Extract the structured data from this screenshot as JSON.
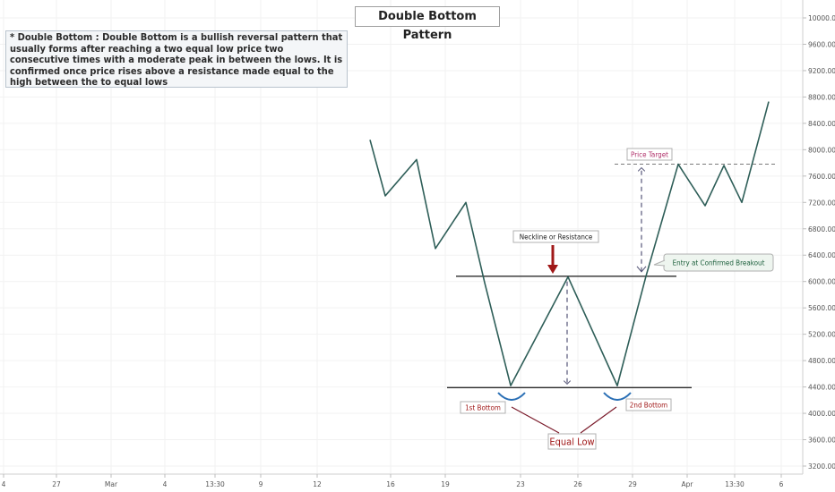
{
  "chart_data": {
    "type": "line",
    "title": "Double Bottom Pattern",
    "description": "* Double Bottom : Double Bottom is a bullish reversal pattern that usually forms after reaching a two equal low price two consecutive times with a moderate peak in between the lows. It is confirmed once price rises above a resistance made equal to the high between the to equal lows",
    "x_tick_labels": [
      "4",
      "27",
      "Mar",
      "4",
      "13:30",
      "9",
      "12",
      "16",
      "19",
      "23",
      "26",
      "29",
      "Apr",
      "13:30",
      "6"
    ],
    "y_tick_labels": [
      "10000.00",
      "9600.00",
      "9200.00",
      "8800.00",
      "8400.00",
      "8000.00",
      "7600.00",
      "7200.00",
      "6800.00",
      "6400.00",
      "6000.00",
      "5600.00",
      "5200.00",
      "4800.00",
      "4400.00",
      "4000.00",
      "3600.00",
      "3200.00"
    ],
    "ylim": [
      3200,
      10000
    ],
    "series": [
      {
        "color": "#2e5e58",
        "values": [
          8150,
          7300,
          7850,
          6500,
          7200,
          5980,
          4420,
          6070,
          4420,
          6080,
          7780,
          7150,
          7760,
          7200,
          8730
        ]
      }
    ],
    "levels": {
      "neckline": 6080,
      "bottom": 4390,
      "target": 7780
    },
    "annotations": {
      "neckline": "Neckline or Resistance",
      "entry": "Entry at Confirmed Breakout",
      "target": "Price Target",
      "first_bottom": "1st Bottom",
      "second_bottom": "2nd Bottom",
      "equal_low": "Equal Low"
    },
    "colors": {
      "price_line": "#2e5e58",
      "level_lines": "#2b2b2b",
      "arrow": "#a01818",
      "bottom_arcs": "#2a6fb5",
      "equal_low_lines": "#7a1a2a",
      "measure_arrows": "#555577",
      "label_red": "#b22222",
      "entry_label_text": "#1a5e3a"
    }
  }
}
